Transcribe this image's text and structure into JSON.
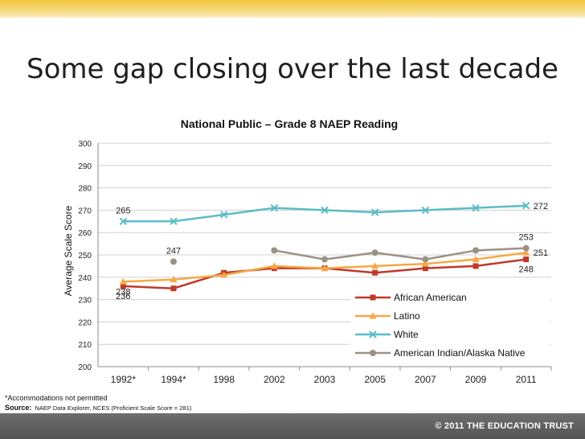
{
  "slide": {
    "title": "Some gap closing over the last decade",
    "footnote": "*Accommodations not permitted",
    "source_label": "Source:",
    "source_text": "NAEP Data Explorer, NCES (Proficient Scale Score = 281)",
    "copyright": "© 2011 THE EDUCATION TRUST"
  },
  "colors": {
    "african_american": "#c0392b",
    "latino": "#f5a844",
    "white": "#5bbcc8",
    "american_indian": "#9a9184",
    "top_band": "#f2c63a",
    "bottom_bar": "#5f5f5f"
  },
  "chart_data": {
    "type": "line",
    "title": "National Public – Grade 8 NAEP Reading",
    "xlabel": "",
    "ylabel": "Average Scale Score",
    "ylim": [
      200,
      300
    ],
    "yticks": [
      200,
      210,
      220,
      230,
      240,
      250,
      260,
      270,
      280,
      290,
      300
    ],
    "grid": true,
    "legend_position": "bottom-right",
    "categories": [
      "1992*",
      "1994*",
      "1998",
      "2002",
      "2003",
      "2005",
      "2007",
      "2009",
      "2011"
    ],
    "series": [
      {
        "name": "African American",
        "marker": "square",
        "color": "#c0392b",
        "values": [
          236,
          235,
          242,
          244,
          244,
          242,
          244,
          245,
          248
        ]
      },
      {
        "name": "Latino",
        "marker": "triangle",
        "color": "#f5a844",
        "values": [
          238,
          239,
          241,
          245,
          244,
          245,
          246,
          248,
          251
        ]
      },
      {
        "name": "White",
        "marker": "x",
        "color": "#5bbcc8",
        "values": [
          265,
          265,
          268,
          271,
          270,
          269,
          270,
          271,
          272
        ]
      },
      {
        "name": "American Indian/Alaska Native",
        "marker": "circle",
        "color": "#9a9184",
        "values": [
          null,
          247,
          null,
          252,
          248,
          251,
          248,
          252,
          253
        ]
      }
    ],
    "data_labels": [
      {
        "series": 2,
        "index": 0,
        "text": "265",
        "pos": "above"
      },
      {
        "series": 2,
        "index": 8,
        "text": "272",
        "pos": "right"
      },
      {
        "series": 3,
        "index": 1,
        "text": "247",
        "pos": "above"
      },
      {
        "series": 3,
        "index": 8,
        "text": "253",
        "pos": "above"
      },
      {
        "series": 1,
        "index": 8,
        "text": "251",
        "pos": "right"
      },
      {
        "series": 0,
        "index": 8,
        "text": "248",
        "pos": "below"
      },
      {
        "series": 1,
        "index": 0,
        "text": "238",
        "pos": "below"
      },
      {
        "series": 0,
        "index": 0,
        "text": "236",
        "pos": "below"
      }
    ]
  }
}
